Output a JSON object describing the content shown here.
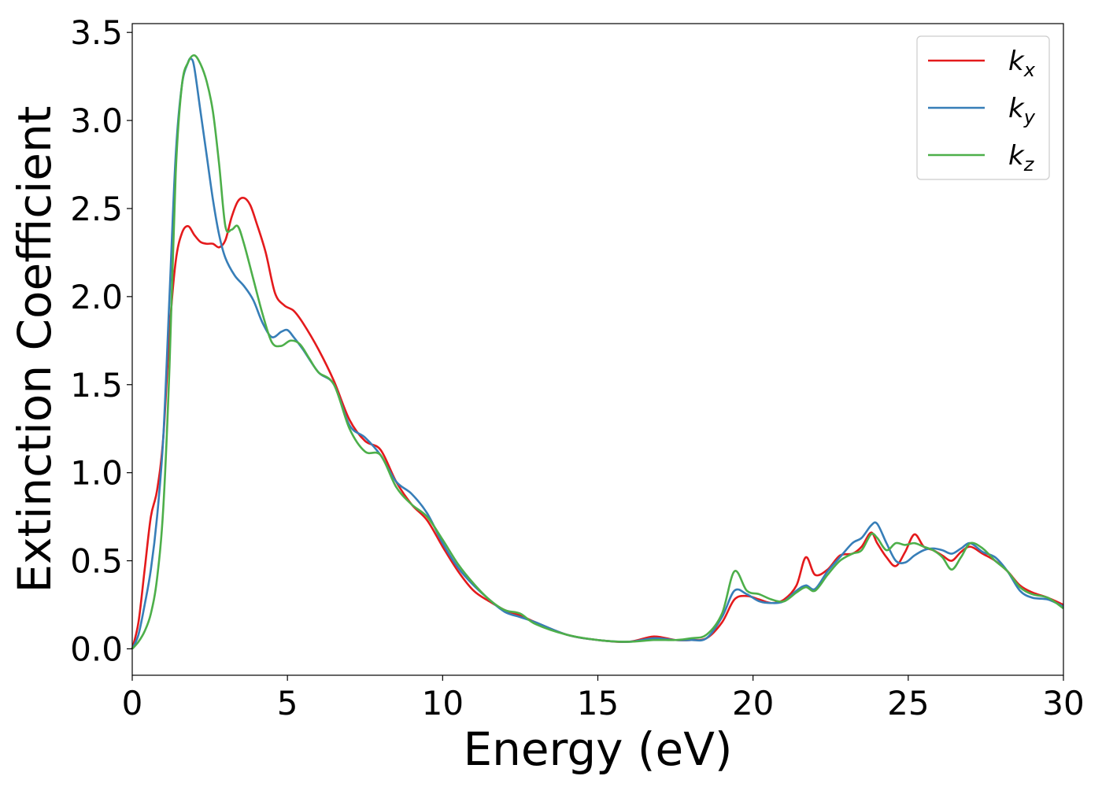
{
  "chart_data": {
    "type": "line",
    "xlabel": "Energy (eV)",
    "ylabel": "Extinction Coefficient",
    "xlim": [
      0,
      30
    ],
    "ylim": [
      -0.15,
      3.55
    ],
    "xticks": [
      0,
      5,
      10,
      15,
      20,
      25,
      30
    ],
    "yticks": [
      0.0,
      0.5,
      1.0,
      1.5,
      2.0,
      2.5,
      3.0,
      3.5
    ],
    "xtick_labels": [
      "0",
      "5",
      "10",
      "15",
      "20",
      "25",
      "30"
    ],
    "ytick_labels": [
      "0.0",
      "0.5",
      "1.0",
      "1.5",
      "2.0",
      "2.5",
      "3.0",
      "3.5"
    ],
    "grid": false,
    "legend_position": "top-right",
    "series": [
      {
        "base": "k",
        "sub": "x",
        "color": "#e41a1c",
        "x": [
          0,
          0.2,
          0.4,
          0.6,
          0.8,
          1.0,
          1.2,
          1.4,
          1.6,
          1.8,
          2.0,
          2.2,
          2.4,
          2.6,
          2.8,
          3.0,
          3.2,
          3.4,
          3.6,
          3.8,
          4.0,
          4.3,
          4.6,
          4.9,
          5.2,
          5.5,
          6.0,
          6.5,
          7.0,
          7.5,
          8.0,
          8.5,
          9.0,
          9.5,
          10.0,
          10.5,
          11.0,
          11.5,
          12.0,
          12.5,
          13.0,
          14.0,
          15.0,
          16.0,
          16.8,
          17.5,
          18.0,
          18.5,
          19.0,
          19.4,
          19.8,
          20.2,
          20.6,
          21.0,
          21.4,
          21.7,
          22.0,
          22.4,
          22.8,
          23.2,
          23.5,
          23.8,
          24.0,
          24.3,
          24.6,
          24.9,
          25.2,
          25.5,
          25.8,
          26.1,
          26.4,
          26.7,
          27.0,
          27.4,
          27.8,
          28.2,
          28.6,
          29.0,
          29.5,
          30.0
        ],
        "y": [
          0.0,
          0.15,
          0.45,
          0.75,
          0.9,
          1.2,
          1.8,
          2.2,
          2.36,
          2.4,
          2.35,
          2.31,
          2.3,
          2.3,
          2.28,
          2.32,
          2.45,
          2.54,
          2.56,
          2.52,
          2.42,
          2.25,
          2.02,
          1.95,
          1.92,
          1.85,
          1.7,
          1.52,
          1.3,
          1.18,
          1.13,
          0.95,
          0.82,
          0.73,
          0.58,
          0.44,
          0.33,
          0.27,
          0.22,
          0.19,
          0.15,
          0.08,
          0.05,
          0.04,
          0.07,
          0.05,
          0.05,
          0.06,
          0.15,
          0.28,
          0.3,
          0.28,
          0.26,
          0.28,
          0.36,
          0.52,
          0.42,
          0.45,
          0.53,
          0.54,
          0.58,
          0.66,
          0.6,
          0.52,
          0.47,
          0.55,
          0.65,
          0.58,
          0.56,
          0.53,
          0.5,
          0.55,
          0.58,
          0.54,
          0.5,
          0.44,
          0.36,
          0.32,
          0.29,
          0.25
        ]
      },
      {
        "base": "k",
        "sub": "y",
        "color": "#377eb8",
        "x": [
          0,
          0.2,
          0.4,
          0.6,
          0.8,
          1.0,
          1.2,
          1.4,
          1.6,
          1.8,
          1.9,
          2.0,
          2.2,
          2.4,
          2.6,
          2.8,
          3.0,
          3.3,
          3.6,
          3.9,
          4.2,
          4.5,
          4.8,
          5.0,
          5.2,
          5.5,
          6.0,
          6.5,
          7.0,
          7.5,
          8.0,
          8.5,
          9.0,
          9.5,
          10.0,
          10.5,
          11.0,
          11.5,
          12.0,
          12.5,
          13.0,
          14.0,
          15.0,
          16.0,
          16.8,
          17.5,
          18.0,
          18.5,
          19.0,
          19.4,
          19.8,
          20.2,
          20.6,
          21.0,
          21.4,
          21.7,
          22.0,
          22.4,
          22.8,
          23.2,
          23.5,
          23.8,
          24.0,
          24.3,
          24.6,
          24.9,
          25.2,
          25.5,
          25.8,
          26.1,
          26.4,
          26.7,
          27.0,
          27.4,
          27.8,
          28.2,
          28.6,
          29.0,
          29.5,
          30.0
        ],
        "y": [
          0.0,
          0.08,
          0.25,
          0.45,
          0.75,
          1.2,
          2.0,
          2.8,
          3.2,
          3.33,
          3.35,
          3.3,
          3.05,
          2.8,
          2.55,
          2.35,
          2.22,
          2.12,
          2.06,
          1.98,
          1.85,
          1.77,
          1.8,
          1.81,
          1.77,
          1.7,
          1.57,
          1.5,
          1.27,
          1.2,
          1.1,
          0.95,
          0.88,
          0.77,
          0.6,
          0.46,
          0.36,
          0.28,
          0.21,
          0.18,
          0.15,
          0.08,
          0.05,
          0.04,
          0.06,
          0.05,
          0.05,
          0.06,
          0.18,
          0.33,
          0.31,
          0.27,
          0.26,
          0.27,
          0.33,
          0.36,
          0.34,
          0.44,
          0.52,
          0.6,
          0.63,
          0.7,
          0.71,
          0.6,
          0.5,
          0.49,
          0.53,
          0.56,
          0.57,
          0.56,
          0.54,
          0.57,
          0.6,
          0.55,
          0.52,
          0.44,
          0.33,
          0.29,
          0.28,
          0.24
        ]
      },
      {
        "base": "k",
        "sub": "z",
        "color": "#4daf4a",
        "x": [
          0,
          0.2,
          0.4,
          0.6,
          0.8,
          1.0,
          1.2,
          1.4,
          1.6,
          1.8,
          2.0,
          2.2,
          2.4,
          2.6,
          2.8,
          3.0,
          3.2,
          3.4,
          3.6,
          3.9,
          4.2,
          4.5,
          4.8,
          5.1,
          5.4,
          5.7,
          6.0,
          6.5,
          7.0,
          7.5,
          8.0,
          8.5,
          9.0,
          9.5,
          10.0,
          10.5,
          11.0,
          11.5,
          12.0,
          12.5,
          13.0,
          14.0,
          15.0,
          16.0,
          16.8,
          17.5,
          18.0,
          18.5,
          19.0,
          19.4,
          19.8,
          20.2,
          20.6,
          21.0,
          21.4,
          21.7,
          22.0,
          22.4,
          22.8,
          23.2,
          23.5,
          23.8,
          24.0,
          24.3,
          24.6,
          24.9,
          25.2,
          25.5,
          25.8,
          26.1,
          26.4,
          26.7,
          27.0,
          27.4,
          27.8,
          28.2,
          28.6,
          29.0,
          29.5,
          30.0
        ],
        "y": [
          0.0,
          0.04,
          0.1,
          0.2,
          0.4,
          0.8,
          1.6,
          2.7,
          3.2,
          3.33,
          3.37,
          3.32,
          3.22,
          3.05,
          2.75,
          2.4,
          2.38,
          2.4,
          2.3,
          2.1,
          1.9,
          1.74,
          1.72,
          1.75,
          1.73,
          1.65,
          1.57,
          1.5,
          1.25,
          1.12,
          1.1,
          0.92,
          0.82,
          0.75,
          0.62,
          0.48,
          0.37,
          0.28,
          0.22,
          0.2,
          0.14,
          0.08,
          0.05,
          0.04,
          0.05,
          0.05,
          0.06,
          0.08,
          0.2,
          0.44,
          0.33,
          0.31,
          0.28,
          0.27,
          0.32,
          0.35,
          0.33,
          0.42,
          0.5,
          0.54,
          0.56,
          0.65,
          0.63,
          0.56,
          0.6,
          0.59,
          0.6,
          0.58,
          0.56,
          0.52,
          0.45,
          0.52,
          0.6,
          0.57,
          0.5,
          0.44,
          0.35,
          0.31,
          0.29,
          0.23
        ]
      }
    ]
  }
}
